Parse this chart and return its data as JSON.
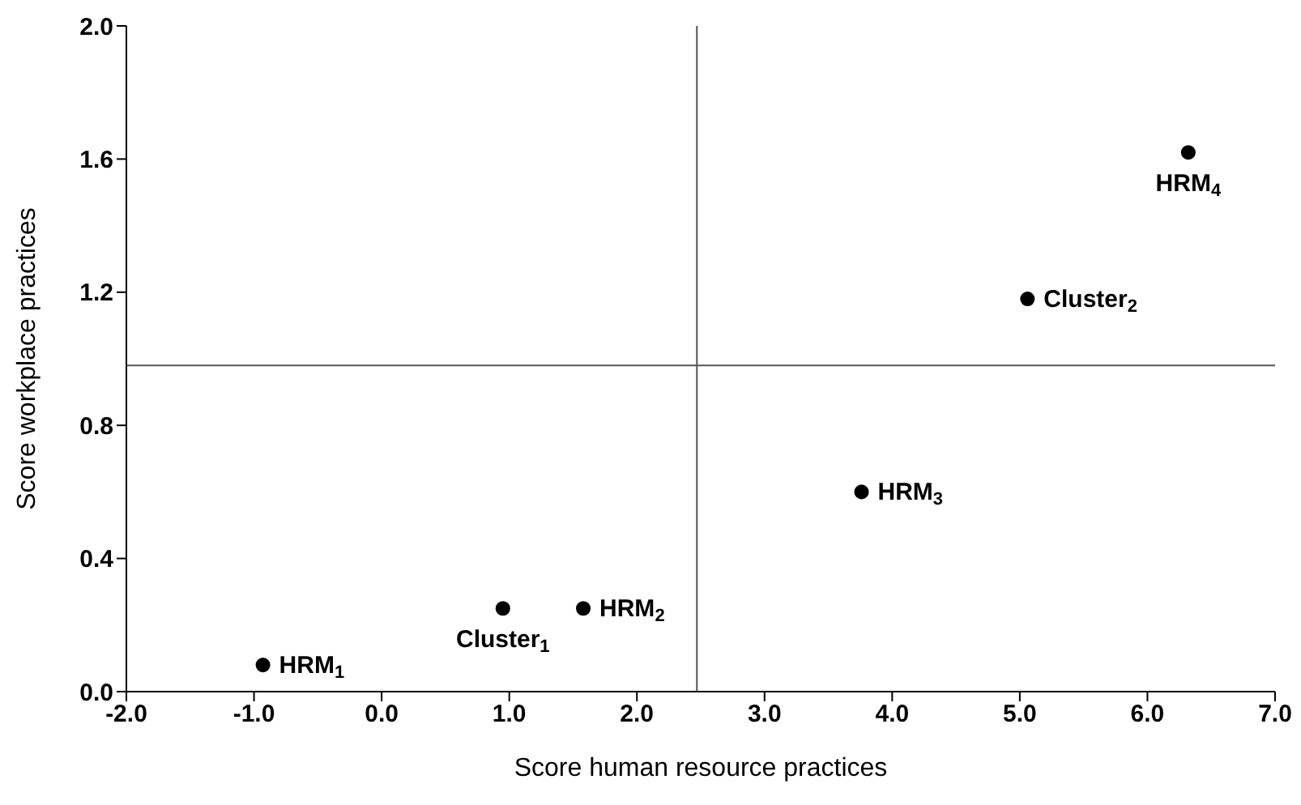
{
  "chart_data": {
    "type": "scatter",
    "xlabel": "Score human resource practices",
    "ylabel": "Score workplace practices",
    "x": [
      -0.93,
      0.95,
      1.58,
      3.76,
      5.06,
      6.32
    ],
    "series": [
      {
        "color": "#000000",
        "values": [
          0.08,
          0.25,
          0.25,
          0.6,
          1.18,
          1.62
        ]
      }
    ],
    "xlim": [
      -2,
      7
    ],
    "xticks": [
      {
        "value": -2,
        "label": "-2.0"
      },
      {
        "value": -1,
        "label": "-1.0"
      },
      {
        "value": 0,
        "label": "0.0"
      },
      {
        "value": 1,
        "label": "1.0"
      },
      {
        "value": 2,
        "label": "2.0"
      },
      {
        "value": 3,
        "label": "3.0"
      },
      {
        "value": 4,
        "label": "4.0"
      },
      {
        "value": 5,
        "label": "5.0"
      },
      {
        "value": 6,
        "label": "6.0"
      },
      {
        "value": 7,
        "label": "7.0"
      }
    ],
    "ylim": [
      0,
      2
    ],
    "yticks": [
      {
        "value": 0,
        "label": "0.0"
      },
      {
        "value": 0.4,
        "label": "0.4"
      },
      {
        "value": 0.8,
        "label": "0.8"
      },
      {
        "value": 1.2,
        "label": "1.2"
      },
      {
        "value": 1.6,
        "label": "1.6"
      },
      {
        "value": 2,
        "label": "2.0"
      }
    ],
    "ref_lines": [
      {
        "axis": "x",
        "value": 2.47,
        "color": "#555555"
      },
      {
        "axis": "y",
        "value": 0.98,
        "color": "#555555"
      }
    ],
    "annotations": [
      {
        "text": "HRM$_{1}$",
        "x": -0.93,
        "y": 0.08
      },
      {
        "text": "Cluster$_{1}$",
        "x": 0.95,
        "y": 0.25
      },
      {
        "text": "HRM$_{2}$",
        "x": 1.58,
        "y": 0.25
      },
      {
        "text": "HRM$_{3}$",
        "x": 3.76,
        "y": 0.6
      },
      {
        "text": "Cluster$_{2}$",
        "x": 5.06,
        "y": 1.18
      },
      {
        "text": "HRM$_{4}$",
        "x": 6.32,
        "y": 1.62
      }
    ],
    "marker": "circle",
    "grid": false,
    "legend": false
  }
}
